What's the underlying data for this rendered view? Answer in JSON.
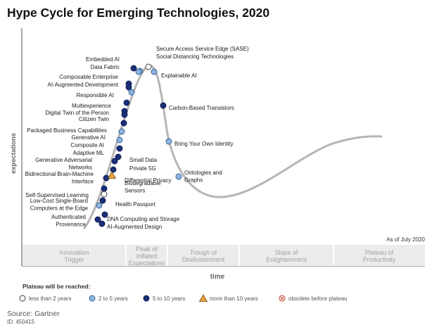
{
  "title": "Hype Cycle for Emerging Technologies, 2020",
  "axis": {
    "y_label": "expectations",
    "x_label": "time"
  },
  "as_of": "As of July 2020",
  "phases": [
    {
      "id": "innovation-trigger",
      "label": [
        "Innovation",
        "Trigger"
      ]
    },
    {
      "id": "peak",
      "label": [
        "Peak of",
        "Inflated",
        "Expectations"
      ]
    },
    {
      "id": "trough",
      "label": [
        "Trough of",
        "Disillusionment"
      ]
    },
    {
      "id": "slope",
      "label": [
        "Slope of",
        "Enlightenment"
      ]
    },
    {
      "id": "plateau",
      "label": [
        "Plateau of",
        "Productivity"
      ]
    }
  ],
  "legend": {
    "title": "Plateau will be reached:",
    "items": [
      {
        "marker": "circle-white",
        "label": "less than 2 years"
      },
      {
        "marker": "circle-light-blue",
        "label": "2 to 5 years"
      },
      {
        "marker": "circle-dark-blue",
        "label": "5 to 10 years"
      },
      {
        "marker": "triangle-orange",
        "label": "more than 10 years"
      },
      {
        "marker": "circle-x-red",
        "label": "obsolete before plateau"
      }
    ]
  },
  "colors": {
    "curve": "#b5b5b5",
    "dark_blue": "#1b2f7a",
    "light_blue": "#8fb4dc",
    "orange": "#e8a23c",
    "band": "#ececec",
    "phase_text": "#a0a0a0"
  },
  "technologies": [
    {
      "label": [
        "Secure Access Service Edge (SASE)"
      ],
      "category": "light"
    },
    {
      "label": [
        "Social Distancing Technologies"
      ],
      "category": "white"
    },
    {
      "label": [
        "Embedded AI"
      ],
      "category": "dark"
    },
    {
      "label": [
        "Data Fabric"
      ],
      "category": "light"
    },
    {
      "label": [
        "Explainable AI"
      ],
      "category": "light"
    },
    {
      "label": [
        "Composable Enterprise"
      ],
      "category": "dark"
    },
    {
      "label": [
        "AI-Augmented Development"
      ],
      "category": "dark"
    },
    {
      "label": [
        "Responsible AI"
      ],
      "category": "light"
    },
    {
      "label": [
        "Carbon-Based Transistors"
      ],
      "category": "dark"
    },
    {
      "label": [
        "Multiexperience"
      ],
      "category": "dark"
    },
    {
      "label": [
        "Digital Twin of the Person"
      ],
      "category": "dark"
    },
    {
      "label": [
        "Citizen Twin"
      ],
      "category": "dark"
    },
    {
      "label": [
        "Packaged Business Capabilities"
      ],
      "category": "dark"
    },
    {
      "label": [
        "Generative AI"
      ],
      "category": "light"
    },
    {
      "label": [
        "Bring Your Own Identity"
      ],
      "category": "light"
    },
    {
      "label": [
        "Composite AI"
      ],
      "category": "light"
    },
    {
      "label": [
        "Adaptive ML"
      ],
      "category": "dark"
    },
    {
      "label": [
        "Small Data"
      ],
      "category": "dark"
    },
    {
      "label": [
        "Generative Adversarial",
        "Networks"
      ],
      "category": "dark"
    },
    {
      "label": [
        "Private 5G"
      ],
      "category": "dark"
    },
    {
      "label": [
        "Ontologies and",
        "Graphs"
      ],
      "category": "light"
    },
    {
      "label": [
        "Bidirectional Brain-Machine",
        "Interface"
      ],
      "category": "dark"
    },
    {
      "label": [
        "Differential Privacy"
      ],
      "category": "triangle"
    },
    {
      "label": [
        "Biodegradable",
        "Sensors"
      ],
      "category": "dark"
    },
    {
      "label": [
        "Self-Supervised Learning"
      ],
      "category": "white"
    },
    {
      "label": [
        "Health Passport"
      ],
      "category": "dark"
    },
    {
      "label": [
        "Low-Cost Single-Board",
        "Computers at the Edge"
      ],
      "category": "light"
    },
    {
      "label": [
        "DNA Computing and Storage"
      ],
      "category": "dark"
    },
    {
      "label": [
        "Authenticated",
        "Provenance"
      ],
      "category": "dark"
    },
    {
      "label": [
        "AI-Augmented Design"
      ],
      "category": "dark"
    }
  ],
  "source": "Source: Gartner",
  "doc_id": "ID: 450415"
}
